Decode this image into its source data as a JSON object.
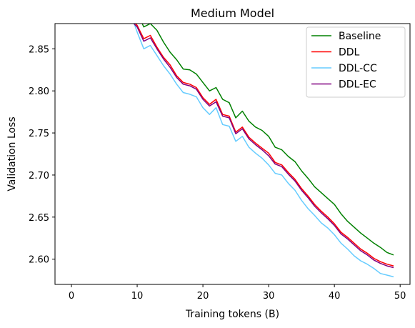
{
  "chart_data": {
    "type": "line",
    "title": "Medium Model",
    "xlabel": "Training tokens (B)",
    "ylabel": "Validation Loss",
    "xlim": [
      -2.5,
      51.5
    ],
    "ylim": [
      2.57,
      2.88
    ],
    "xticks": [
      0,
      10,
      20,
      30,
      40,
      50
    ],
    "xtick_labels": [
      "0",
      "10",
      "20",
      "30",
      "40",
      "50"
    ],
    "yticks": [
      2.6,
      2.65,
      2.7,
      2.75,
      2.8,
      2.85
    ],
    "ytick_labels": [
      "2.60",
      "2.65",
      "2.70",
      "2.75",
      "2.80",
      "2.85"
    ],
    "grid": false,
    "legend_position": "top-right",
    "series": [
      {
        "name": "Baseline",
        "color": "#008000",
        "x": [
          10,
          11,
          12,
          13,
          14,
          15,
          16,
          17,
          18,
          19,
          20,
          21,
          22,
          23,
          24,
          25,
          26,
          27,
          28,
          29,
          30,
          31,
          32,
          33,
          34,
          35,
          36,
          37,
          38,
          39,
          40,
          41,
          42,
          43,
          44,
          45,
          46,
          47,
          48,
          49
        ],
        "y": [
          2.893,
          2.876,
          2.88,
          2.872,
          2.858,
          2.846,
          2.837,
          2.826,
          2.825,
          2.82,
          2.81,
          2.8,
          2.804,
          2.79,
          2.786,
          2.768,
          2.776,
          2.764,
          2.757,
          2.753,
          2.746,
          2.733,
          2.73,
          2.722,
          2.716,
          2.705,
          2.696,
          2.686,
          2.679,
          2.672,
          2.665,
          2.654,
          2.645,
          2.638,
          2.631,
          2.625,
          2.619,
          2.614,
          2.608,
          2.605
        ]
      },
      {
        "name": "DDL",
        "color": "#ff0000",
        "x": [
          9.5,
          10,
          11,
          12,
          13,
          14,
          15,
          16,
          17,
          18,
          19,
          20,
          21,
          22,
          23,
          24,
          25,
          26,
          27,
          28,
          29,
          30,
          31,
          32,
          33,
          34,
          35,
          36,
          37,
          38,
          39,
          40,
          41,
          42,
          43,
          44,
          45,
          46,
          47,
          48,
          49
        ],
        "y": [
          2.882,
          2.878,
          2.862,
          2.866,
          2.852,
          2.84,
          2.831,
          2.818,
          2.81,
          2.808,
          2.804,
          2.792,
          2.784,
          2.79,
          2.772,
          2.77,
          2.751,
          2.757,
          2.745,
          2.738,
          2.732,
          2.726,
          2.715,
          2.712,
          2.703,
          2.695,
          2.684,
          2.675,
          2.665,
          2.657,
          2.65,
          2.642,
          2.632,
          2.626,
          2.619,
          2.612,
          2.607,
          2.601,
          2.597,
          2.594,
          2.592
        ]
      },
      {
        "name": "DDL-CC",
        "color": "#66ccff",
        "x": [
          9.5,
          10,
          11,
          12,
          13,
          14,
          15,
          16,
          17,
          18,
          19,
          20,
          21,
          22,
          23,
          24,
          25,
          26,
          27,
          28,
          29,
          30,
          31,
          32,
          33,
          34,
          35,
          36,
          37,
          38,
          39,
          40,
          41,
          42,
          43,
          44,
          45,
          46,
          47,
          48,
          49
        ],
        "y": [
          2.881,
          2.87,
          2.85,
          2.854,
          2.842,
          2.83,
          2.82,
          2.808,
          2.798,
          2.796,
          2.793,
          2.78,
          2.772,
          2.78,
          2.76,
          2.758,
          2.74,
          2.746,
          2.733,
          2.726,
          2.72,
          2.712,
          2.702,
          2.7,
          2.69,
          2.682,
          2.67,
          2.66,
          2.652,
          2.643,
          2.637,
          2.629,
          2.619,
          2.612,
          2.604,
          2.598,
          2.594,
          2.589,
          2.583,
          2.581,
          2.579
        ]
      },
      {
        "name": "DDL-EC",
        "color": "#800080",
        "x": [
          9.5,
          10,
          11,
          12,
          13,
          14,
          15,
          16,
          17,
          18,
          19,
          20,
          21,
          22,
          23,
          24,
          25,
          26,
          27,
          28,
          29,
          30,
          31,
          32,
          33,
          34,
          35,
          36,
          37,
          38,
          39,
          40,
          41,
          42,
          43,
          44,
          45,
          46,
          47,
          48,
          49
        ],
        "y": [
          2.88,
          2.876,
          2.859,
          2.863,
          2.85,
          2.838,
          2.828,
          2.816,
          2.808,
          2.806,
          2.802,
          2.79,
          2.782,
          2.787,
          2.77,
          2.768,
          2.749,
          2.755,
          2.743,
          2.736,
          2.73,
          2.723,
          2.713,
          2.71,
          2.701,
          2.693,
          2.682,
          2.673,
          2.663,
          2.655,
          2.648,
          2.64,
          2.63,
          2.624,
          2.617,
          2.61,
          2.605,
          2.599,
          2.595,
          2.592,
          2.59
        ]
      }
    ]
  }
}
